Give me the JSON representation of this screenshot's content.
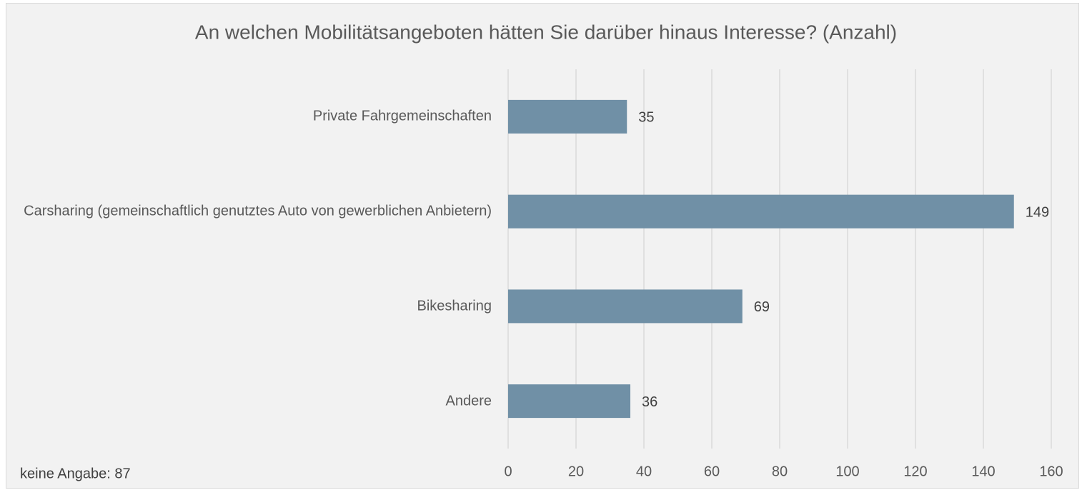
{
  "chart_data": {
    "type": "bar",
    "orientation": "horizontal",
    "title": "An welchen Mobilitätsangeboten hätten Sie darüber hinaus Interesse? (Anzahl)",
    "categories": [
      "Private Fahrgemeinschaften",
      "Carsharing (gemeinschaftlich genutztes Auto von gewerblichen Anbietern)",
      "Bikesharing",
      "Andere"
    ],
    "values": [
      35,
      149,
      69,
      36
    ],
    "color": "#7090a6",
    "xlim": [
      0,
      160
    ],
    "xticks": [
      0,
      20,
      40,
      60,
      80,
      100,
      120,
      140,
      160
    ],
    "grid": true,
    "annotation": "keine Angabe: 87"
  }
}
